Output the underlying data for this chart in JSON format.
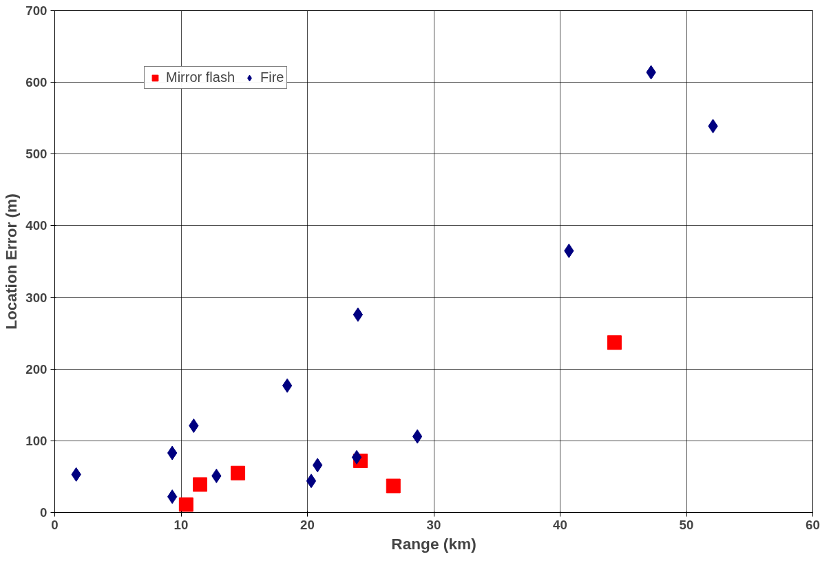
{
  "chart_data": {
    "type": "scatter",
    "xlabel": "Range (km)",
    "ylabel": "Location Error (m)",
    "xlim": [
      0,
      60
    ],
    "ylim": [
      0,
      700
    ],
    "xticks": [
      0,
      10,
      20,
      30,
      40,
      50,
      60
    ],
    "yticks": [
      0,
      100,
      200,
      300,
      400,
      500,
      600,
      700
    ],
    "grid": true,
    "legend": "top left",
    "series": [
      {
        "name": "Fire",
        "color": "#000080",
        "marker": "diamond",
        "x": [
          1.7,
          9.3,
          9.3,
          11.0,
          12.8,
          18.4,
          20.3,
          20.8,
          23.9,
          24.0,
          28.7,
          40.7,
          47.2,
          52.1
        ],
        "values": [
          53,
          83,
          22,
          121,
          51,
          177,
          44,
          66,
          77,
          276,
          106,
          365,
          614,
          539
        ]
      },
      {
        "name": "Mirror flash",
        "color": "#ff0000",
        "marker": "square",
        "x": [
          10.4,
          11.5,
          14.5,
          24.2,
          26.8,
          44.3
        ],
        "values": [
          11,
          39,
          55,
          72,
          37,
          237
        ]
      }
    ]
  }
}
